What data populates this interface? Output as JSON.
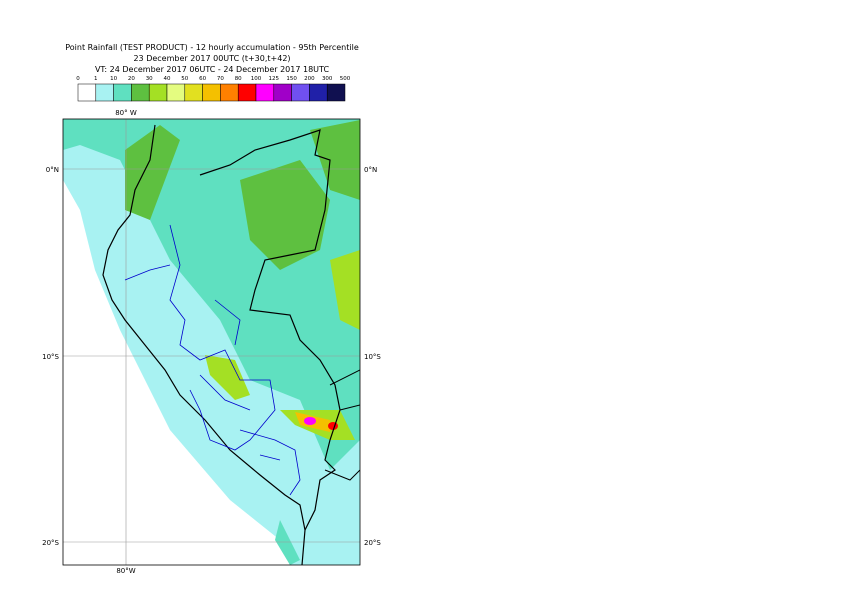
{
  "header": {
    "title": "Point Rainfall (TEST PRODUCT) - 12 hourly accumulation - 95th Percentile",
    "base": "23 December 2017 00UTC (t+30,t+42)",
    "valid": "VT: 24 December 2017 06UTC - 24 December 2017 18UTC"
  },
  "legend": {
    "thresholds": [
      0,
      1,
      10,
      20,
      30,
      40,
      50,
      60,
      70,
      80,
      100,
      125,
      150,
      200,
      300,
      500
    ],
    "colors": [
      "#ffffff",
      "#a8f2f2",
      "#5fe0c0",
      "#5ec040",
      "#a4e024",
      "#e4fc80",
      "#e2e020",
      "#f4c000",
      "#ff8000",
      "#ff0000",
      "#ff00ff",
      "#a000c8",
      "#7050f0",
      "#2020a8",
      "#101050"
    ]
  },
  "map": {
    "lon_top": "80° W",
    "lon_bottom": "80°W",
    "lat": [
      "0°N",
      "10°S",
      "20°S"
    ]
  }
}
